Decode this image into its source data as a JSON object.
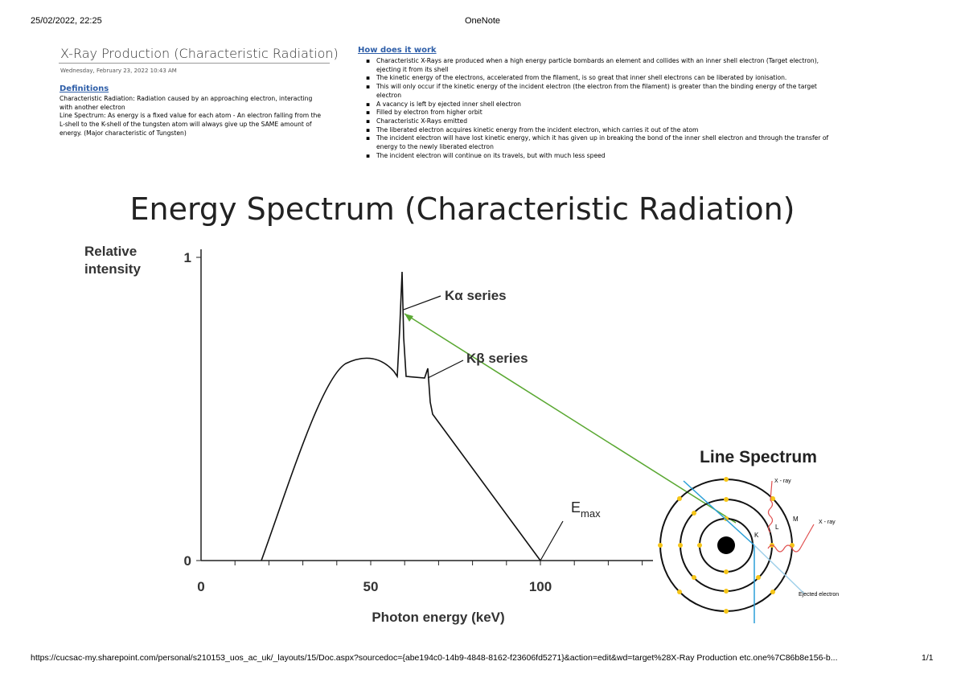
{
  "header": {
    "date": "25/02/2022, 22:25",
    "app": "OneNote"
  },
  "note": {
    "title": "X-Ray Production (Characteristic Radiation)",
    "date": "Wednesday, February 23, 2022    10:43 AM"
  },
  "definitions": {
    "heading": "Definitions",
    "lines": [
      "Characteristic Radiation: Radiation caused by an approaching electron, interacting",
      "with another electron",
      "Line Spectrum: As energy is a fixed value for each atom - An electron falling from the",
      "L-shell to the K-shell of the tungsten atom will always give up the SAME amount of",
      "energy. (Major characteristic of Tungsten)"
    ]
  },
  "how": {
    "heading": "How does it work",
    "bullets": [
      [
        "Characteristic X-Rays are produced when a high energy particle bombards an element and collides with an inner shell electron (Target electron),",
        "ejecting it from its shell"
      ],
      [
        "The kinetic energy of the electrons, accelerated from the filament, is so great that inner shell electrons can be liberated by ionisation."
      ],
      [
        "This will only occur if the kinetic energy of the incident electron (the electron from the filament) is greater than the binding energy of the target",
        "electron"
      ],
      [
        "A vacancy is left by ejected inner shell electron"
      ],
      [
        "Filled by electron from higher orbit"
      ],
      [
        "Characteristic X-Rays emitted"
      ],
      [
        "The liberated electron acquires kinetic energy from the incident electron, which carries it out of the atom"
      ],
      [
        "The incident electron will have lost kinetic energy, which it has given up in breaking the bond of the inner shell electron and through the transfer of",
        "energy to the newly liberated electron"
      ],
      [
        "The incident electron will continue on its travels, but with much less speed"
      ]
    ]
  },
  "figure": {
    "title": "Energy Spectrum (Characteristic Radiation)",
    "y_label": [
      "Relative",
      "intensity"
    ],
    "x_label": "Photon energy (keV)",
    "x_ticks": [
      0,
      50,
      100
    ],
    "y_ticks": [
      0,
      1
    ],
    "k_alpha": "Kα series",
    "k_beta": "Kβ series",
    "emax": {
      "base": "E",
      "subscript": "max"
    }
  },
  "line_spectrum": {
    "title": "Line Spectrum",
    "xray_1": "X - ray",
    "xray_2": "X - ray",
    "shell_m": "M",
    "shell_l": "L",
    "shell_k": "K",
    "ejected": "Ejected electron"
  },
  "footer": {
    "url": "https://cucsac-my.sharepoint.com/personal/s210153_uos_ac_uk/_layouts/15/Doc.aspx?sourcedoc={abe194c0-14b9-4848-8162-f23606fd5271}&action=edit&wd=target%28X-Ray Production etc.one%7C86b8e156-b...",
    "page": "1/1"
  }
}
